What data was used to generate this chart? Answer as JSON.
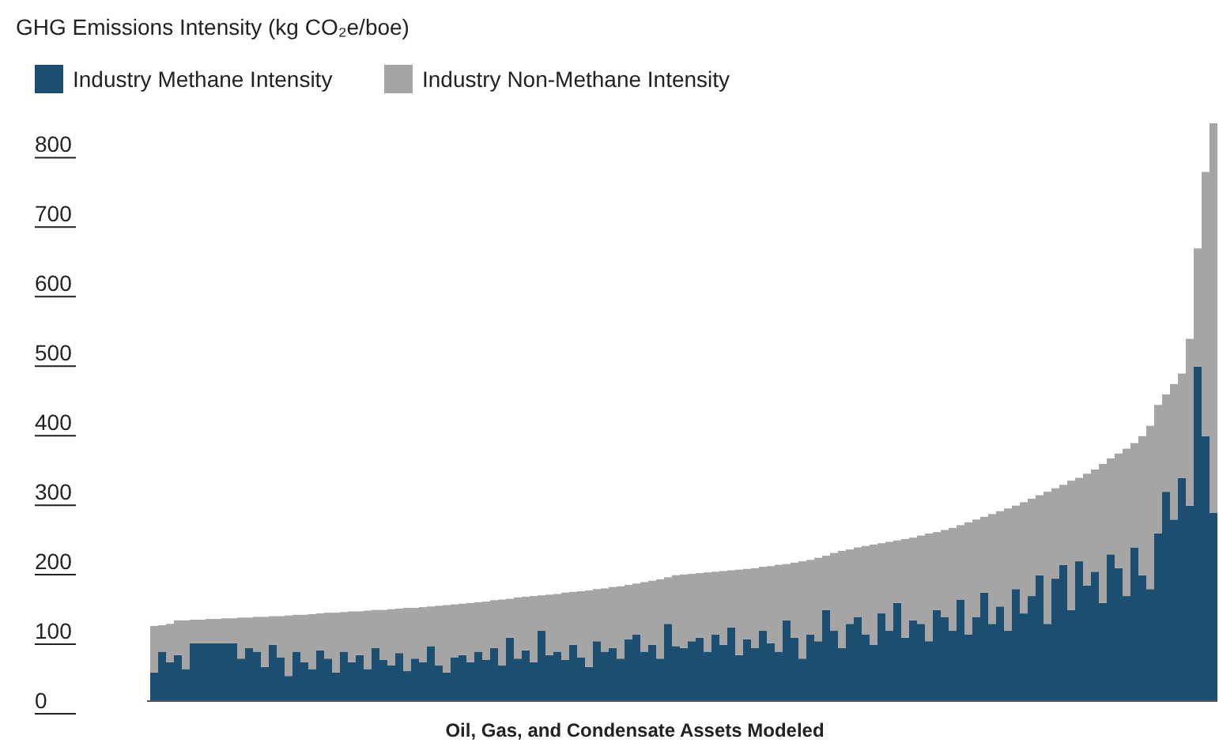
{
  "chart_data": {
    "type": "bar",
    "stacked": true,
    "ylabel": "GHG Emissions Intensity (kg CO₂e/boe)",
    "xlabel": "Oil, Gas, and Condensate Assets Modeled",
    "legend": "top left",
    "grid": false,
    "ylim": [
      0,
      830
    ],
    "yticks": [
      0,
      100,
      200,
      300,
      400,
      500,
      600,
      700,
      800
    ],
    "categories": [
      null,
      null,
      null,
      null,
      null,
      null,
      null,
      null,
      null,
      null,
      null,
      null,
      null,
      null,
      null,
      null,
      null,
      null,
      null,
      null,
      null,
      null,
      null,
      null,
      null,
      null,
      null,
      null,
      null,
      null,
      null,
      null,
      null,
      null,
      null,
      null,
      null,
      null,
      null,
      null,
      null,
      null,
      null,
      null,
      null,
      null,
      null,
      null,
      null,
      null,
      null,
      null,
      null,
      null,
      null,
      null,
      null,
      null,
      null,
      null,
      null,
      null,
      null,
      null,
      null,
      null,
      null,
      null,
      null,
      null,
      null,
      null,
      null,
      null,
      null,
      null,
      null,
      null,
      null,
      null,
      null,
      null,
      null,
      null,
      null,
      null,
      null,
      null,
      null,
      null,
      null,
      null,
      null,
      null,
      null,
      null,
      null,
      null,
      null,
      null,
      null,
      null,
      null,
      null,
      null,
      null,
      null,
      null,
      null,
      null,
      null,
      null,
      null,
      null,
      null,
      null,
      null,
      null,
      null,
      null,
      null,
      null,
      null,
      null,
      null,
      null,
      null,
      null,
      null,
      null,
      null,
      null,
      null,
      null,
      null
    ],
    "series": [
      {
        "name": "Industry Methane Intensity",
        "color": "#1c4e71",
        "values": [
          40,
          70,
          55,
          65,
          45,
          82,
          82,
          82,
          82,
          82,
          82,
          60,
          75,
          70,
          48,
          80,
          62,
          35,
          70,
          55,
          45,
          72,
          60,
          40,
          70,
          55,
          65,
          45,
          75,
          58,
          50,
          68,
          42,
          60,
          55,
          78,
          50,
          40,
          62,
          65,
          55,
          70,
          58,
          75,
          50,
          90,
          60,
          72,
          55,
          100,
          65,
          70,
          58,
          80,
          62,
          48,
          85,
          70,
          75,
          60,
          88,
          95,
          70,
          80,
          60,
          110,
          78,
          75,
          85,
          90,
          70,
          95,
          80,
          105,
          65,
          88,
          75,
          100,
          82,
          70,
          115,
          90,
          60,
          95,
          85,
          130,
          100,
          75,
          110,
          120,
          95,
          80,
          125,
          100,
          140,
          90,
          115,
          110,
          85,
          130,
          120,
          100,
          145,
          95,
          120,
          155,
          110,
          135,
          100,
          160,
          125,
          150,
          180,
          110,
          175,
          195,
          130,
          200,
          165,
          185,
          140,
          210,
          190,
          150,
          220,
          180,
          160,
          240,
          300,
          260,
          320,
          280,
          480,
          380,
          270
        ]
      },
      {
        "name": "Industry Non-Methane Intensity",
        "color": "#a5a5a5",
        "values": [
          67,
          38,
          55,
          50,
          70,
          34,
          34,
          35,
          35,
          36,
          36,
          59,
          44,
          50,
          72,
          41,
          59,
          87,
          53,
          68,
          79,
          53,
          66,
          86,
          57,
          73,
          63,
          84,
          55,
          72,
          81,
          64,
          91,
          73,
          79,
          57,
          86,
          97,
          76,
          74,
          85,
          71,
          84,
          69,
          95,
          56,
          88,
          77,
          95,
          51,
          87,
          83,
          97,
          76,
          95,
          110,
          75,
          91,
          88,
          104,
          78,
          73,
          100,
          92,
          114,
          67,
          102,
          106,
          97,
          93,
          114,
          90,
          106,
          82,
          123,
          101,
          115,
          92,
          111,
          125,
          81,
          108,
          140,
          107,
          120,
          78,
          112,
          140,
          107,
          100,
          127,
          144,
          101,
          128,
          90,
          142,
          119,
          127,
          155,
          112,
          125,
          148,
          107,
          161,
          140,
          109,
          158,
          137,
          176,
          120,
          160,
          140,
          115,
          190,
          130,
          115,
          186,
          120,
          161,
          147,
          200,
          138,
          165,
          212,
          150,
          200,
          235,
          185,
          140,
          195,
          150,
          240,
          170,
          380,
          560
        ]
      }
    ]
  }
}
